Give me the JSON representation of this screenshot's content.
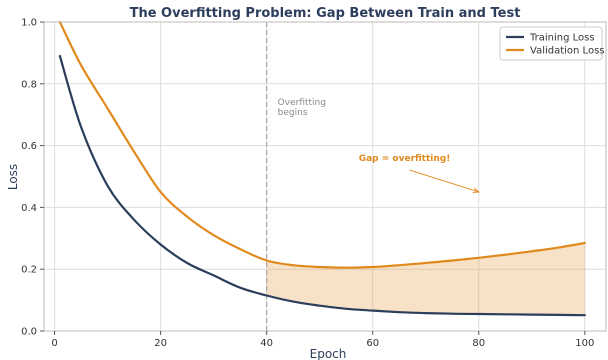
{
  "chart_data": {
    "type": "line",
    "title": "The Overfitting Problem: Gap Between Train and Test",
    "xlabel": "Epoch",
    "ylabel": "Loss",
    "xlim": [
      -2,
      104
    ],
    "ylim": [
      0,
      1.0
    ],
    "xticks": [
      0,
      20,
      40,
      60,
      80,
      100
    ],
    "yticks": [
      0.0,
      0.2,
      0.4,
      0.6,
      0.8,
      1.0
    ],
    "xtick_labels": [
      "0",
      "20",
      "40",
      "60",
      "80",
      "100"
    ],
    "ytick_labels": [
      "0.0",
      "0.2",
      "0.4",
      "0.6",
      "0.8",
      "1.0"
    ],
    "grid": true,
    "legend_position": "top-right",
    "x": [
      1,
      5,
      10,
      15,
      20,
      25,
      30,
      35,
      40,
      45,
      50,
      55,
      60,
      65,
      70,
      75,
      80,
      85,
      90,
      95,
      100
    ],
    "series": [
      {
        "name": "Training Loss",
        "color": "#2c3e5c",
        "values": [
          0.89,
          0.66,
          0.47,
          0.36,
          0.28,
          0.22,
          0.18,
          0.14,
          0.115,
          0.095,
          0.082,
          0.072,
          0.066,
          0.061,
          0.058,
          0.056,
          0.055,
          0.054,
          0.053,
          0.052,
          0.051
        ]
      },
      {
        "name": "Validation Loss",
        "color": "#e08a1e",
        "values": [
          1.0,
          0.86,
          0.72,
          0.58,
          0.45,
          0.37,
          0.31,
          0.265,
          0.228,
          0.213,
          0.207,
          0.205,
          0.207,
          0.213,
          0.22,
          0.228,
          0.237,
          0.247,
          0.258,
          0.27,
          0.285
        ]
      }
    ],
    "shade_between": {
      "from_x": 40,
      "to_x": 100,
      "color": "#e08a1e",
      "opacity": 0.25
    },
    "vline": {
      "x": 40,
      "color": "#999999",
      "style": "dashed"
    },
    "annotations": {
      "vline_label": [
        "Overfitting",
        "begins"
      ],
      "gap_label": "Gap = overfitting!",
      "gap_label_color": "#e08a1e",
      "gap_arrow_target": {
        "x": 80,
        "y": 0.45
      },
      "gap_label_anchor": {
        "x": 66,
        "y": 0.55
      }
    }
  }
}
